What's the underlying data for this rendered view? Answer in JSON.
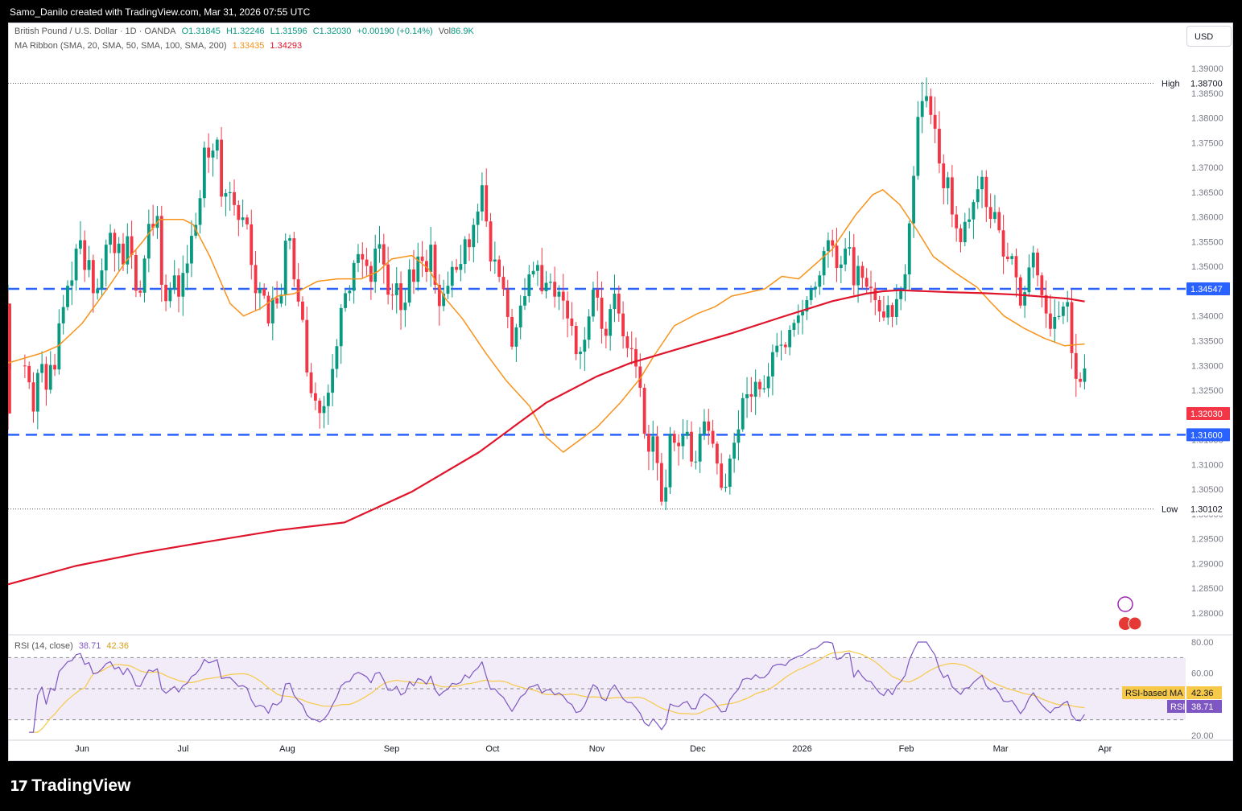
{
  "header": {
    "title": "Samo_Danilo created with TradingView.com, Mar 31, 2026 07:55 UTC"
  },
  "legend": {
    "symbol": "British Pound / U.S. Dollar · 1D · OANDA",
    "open": "O1.31845",
    "high": "H1.32246",
    "low": "L1.31596",
    "close": "C1.32030",
    "change": "+0.00190 (+0.14%)",
    "volume_label": "Vol",
    "volume": "86.9K",
    "ma_label": "MA Ribbon (SMA, 20, SMA, 50, SMA, 100, SMA, 200)",
    "ma1": "1.33435",
    "ma2": "1.34293",
    "rsi_label": "RSI (14, close)",
    "rsi_value": "38.71",
    "rsi_ma_value": "42.36"
  },
  "toolbar": {
    "currency": "USD"
  },
  "footer": {
    "brand": "TradingView"
  },
  "colors": {
    "up": "#089981",
    "down": "#f23645",
    "ma_fast": "#f7931a",
    "ma_slow": "#e0142a",
    "level": "#2962ff",
    "rsi": "#7e57c2",
    "rsi_ma": "#f7c948"
  },
  "chart_data": [
    {
      "type": "candlestick",
      "title": "British Pound / U.S. Dollar · 1D · OANDA",
      "ylim": [
        1.276,
        1.392
      ],
      "y_ticks": [
        "1.39000",
        "1.38500",
        "1.38000",
        "1.37500",
        "1.37000",
        "1.36500",
        "1.36000",
        "1.35500",
        "1.35000",
        "1.34500",
        "1.34000",
        "1.33500",
        "1.33000",
        "1.32500",
        "1.32000",
        "1.31500",
        "1.31000",
        "1.30500",
        "1.30000",
        "1.29500",
        "1.29000",
        "1.28500",
        "1.28000"
      ],
      "y_tick_values": [
        1.39,
        1.385,
        1.38,
        1.375,
        1.37,
        1.365,
        1.36,
        1.355,
        1.35,
        1.345,
        1.34,
        1.335,
        1.33,
        1.325,
        1.32,
        1.315,
        1.31,
        1.305,
        1.3,
        1.295,
        1.29,
        1.285,
        1.28
      ],
      "x_labels": [
        {
          "label": "Jun",
          "day": 22
        },
        {
          "label": "Jul",
          "day": 52
        },
        {
          "label": "Aug",
          "day": 83
        },
        {
          "label": "Sep",
          "day": 114
        },
        {
          "label": "Oct",
          "day": 144
        },
        {
          "label": "Nov",
          "day": 175
        },
        {
          "label": "Dec",
          "day": 205
        },
        {
          "label": "2026",
          "day": 236
        },
        {
          "label": "Feb",
          "day": 267
        },
        {
          "label": "Mar",
          "day": 295
        },
        {
          "label": "Apr",
          "day": 326
        }
      ],
      "day_range": [
        0,
        350
      ],
      "high": {
        "label": "High",
        "value": "1.38700",
        "y": 1.387
      },
      "low": {
        "label": "Low",
        "value": "1.30102",
        "y": 1.30102
      },
      "levels": [
        {
          "value": "1.34547",
          "y": 1.34547
        },
        {
          "value": "1.31600",
          "y": 1.316
        }
      ],
      "last_price": {
        "value": "1.32030",
        "y": 1.3203
      },
      "series": [
        {
          "name": "SMA 20",
          "days": [
            0,
            10,
            15,
            22,
            30,
            35,
            40,
            45,
            52,
            55,
            60,
            66,
            70,
            75,
            80,
            85,
            92,
            98,
            105,
            110,
            114,
            120,
            125,
            130,
            135,
            142,
            148,
            150,
            155,
            160,
            165,
            170,
            175,
            182,
            188,
            192,
            198,
            205,
            210,
            215,
            225,
            230,
            235,
            245,
            252,
            257,
            260,
            265,
            270,
            275,
            282,
            288,
            292,
            296,
            302,
            308,
            314,
            320
          ],
          "values": [
            1.3305,
            1.3325,
            1.334,
            1.3385,
            1.346,
            1.351,
            1.355,
            1.3595,
            1.3595,
            1.3585,
            1.352,
            1.3425,
            1.34,
            1.3415,
            1.344,
            1.3445,
            1.347,
            1.3475,
            1.3475,
            1.349,
            1.3515,
            1.3522,
            1.3495,
            1.3435,
            1.3395,
            1.3325,
            1.327,
            1.3255,
            1.3218,
            1.3155,
            1.3125,
            1.315,
            1.3175,
            1.3225,
            1.3275,
            1.332,
            1.338,
            1.3405,
            1.3418,
            1.344,
            1.3455,
            1.348,
            1.3475,
            1.3535,
            1.3605,
            1.3645,
            1.3655,
            1.3625,
            1.3575,
            1.352,
            1.3485,
            1.3458,
            1.3428,
            1.34,
            1.3375,
            1.3355,
            1.334,
            1.33435
          ]
        },
        {
          "name": "SMA 200",
          "days": [
            0,
            20,
            40,
            60,
            80,
            100,
            120,
            140,
            160,
            175,
            185,
            200,
            215,
            230,
            245,
            255,
            260,
            265,
            280,
            290,
            300,
            315,
            320
          ],
          "values": [
            1.2858,
            1.2895,
            1.2922,
            1.2945,
            1.2967,
            1.2983,
            1.3045,
            1.3125,
            1.3225,
            1.3278,
            1.3305,
            1.3335,
            1.3365,
            1.3398,
            1.343,
            1.3445,
            1.345,
            1.3452,
            1.3448,
            1.3446,
            1.3443,
            1.3435,
            1.34293
          ]
        }
      ],
      "candles": {
        "description": "Approximately 250 daily OHLC candles estimated from the chart shape; first day ~May 8 2025, last day Mar 31 2026.",
        "first_day": 5,
        "step_days": 1.27,
        "days": [
          5,
          6.27,
          7.54,
          8.81,
          10.08,
          11.35,
          12.62,
          13.89,
          15.16,
          16.43,
          17.7,
          18.97,
          20.24,
          21.51,
          22.78,
          24.05,
          25.32,
          26.59,
          27.86,
          29.13,
          30.4,
          31.67,
          32.94,
          34.21,
          35.48,
          36.75,
          38.02,
          39.29,
          40.56,
          41.83,
          43.1,
          44.37,
          45.64,
          46.91,
          48.18,
          49.45,
          50.72,
          51.99,
          53.26,
          54.53,
          55.8,
          57.07,
          58.34,
          59.61,
          60.88,
          62.15,
          63.42,
          64.69,
          65.96,
          67.23,
          68.5,
          69.77,
          71.04,
          72.31,
          73.58,
          74.85,
          76.12,
          77.39,
          78.66,
          79.93,
          81.2,
          82.47,
          83.74,
          85.01,
          86.28,
          87.55,
          88.82,
          90.09,
          91.36,
          92.63,
          93.9,
          95.17,
          96.44,
          97.71,
          98.98,
          100.25,
          101.52,
          102.79,
          104.06,
          105.33,
          106.6,
          107.87,
          109.14,
          110.41,
          111.68,
          112.95,
          114.22,
          115.49,
          116.76,
          118.03,
          119.3,
          120.57,
          121.84,
          123.11,
          124.38,
          125.65,
          126.92,
          128.19,
          129.46,
          130.73,
          132,
          133.27,
          134.54,
          135.81,
          137.08,
          138.35,
          139.62,
          140.89,
          142.16,
          143.43,
          144.7,
          145.97,
          147.24,
          148.51,
          149.78,
          151.05,
          152.32,
          153.59,
          154.86,
          156.13,
          157.4,
          158.67,
          159.94,
          161.21,
          162.48,
          163.75,
          165.02,
          166.29,
          167.56,
          168.83,
          170.1,
          171.37,
          172.64,
          173.91,
          175.18,
          176.45,
          177.72,
          178.99,
          180.26,
          181.53,
          182.8,
          184.07,
          185.34,
          186.61,
          187.88,
          189.15,
          190.42,
          191.69,
          192.96,
          194.23,
          195.5,
          196.77,
          198.04,
          199.31,
          200.58,
          201.85,
          203.12,
          204.39,
          205.66,
          206.93,
          208.2,
          209.47,
          210.74,
          212.01,
          213.28,
          214.55,
          215.82,
          217.09,
          218.36,
          219.63,
          220.9,
          222.17,
          223.44,
          224.71,
          225.98,
          227.25,
          228.52,
          229.79,
          231.06,
          232.33,
          233.6,
          234.87,
          236.14,
          237.41,
          238.68,
          239.95,
          241.22,
          242.49,
          243.76,
          245.03,
          246.3,
          247.57,
          248.84,
          250.11,
          251.38,
          252.65,
          253.92,
          255.19,
          256.46,
          257.73,
          259,
          260.27,
          261.54,
          262.81,
          264.08,
          265.35,
          266.62,
          267.89,
          269.16,
          270.43,
          271.7,
          272.97,
          274.24,
          275.51,
          276.78,
          278.05,
          279.32,
          280.59,
          281.86,
          283.13,
          284.4,
          285.67,
          286.94,
          288.21,
          289.48,
          290.75,
          292.02,
          293.29,
          294.56,
          295.83,
          297.1,
          298.37,
          299.64,
          300.91,
          302.18,
          303.45,
          304.72,
          305.99,
          307.26,
          308.53,
          309.8,
          311.07,
          312.34,
          313.61,
          314.88,
          316.15,
          317.42,
          318.69,
          319.96
        ],
        "closes": [
          1.3299,
          1.3266,
          1.3207,
          1.3285,
          1.3303,
          1.3251,
          1.3301,
          1.3292,
          1.3385,
          1.3418,
          1.3461,
          1.3472,
          1.3536,
          1.3553,
          1.3493,
          1.3513,
          1.3446,
          1.3455,
          1.3492,
          1.3544,
          1.3568,
          1.3527,
          1.3546,
          1.3504,
          1.3561,
          1.3523,
          1.3451,
          1.3447,
          1.3516,
          1.3586,
          1.3578,
          1.3602,
          1.3463,
          1.343,
          1.3454,
          1.3482,
          1.3439,
          1.3487,
          1.3506,
          1.3562,
          1.3584,
          1.3638,
          1.374,
          1.372,
          1.3734,
          1.3756,
          1.3641,
          1.3648,
          1.365,
          1.3624,
          1.3594,
          1.3599,
          1.3585,
          1.3503,
          1.3446,
          1.3455,
          1.3441,
          1.3385,
          1.3436,
          1.3425,
          1.3443,
          1.3552,
          1.3557,
          1.3474,
          1.3429,
          1.3392,
          1.3286,
          1.3244,
          1.3229,
          1.3204,
          1.3218,
          1.3245,
          1.3293,
          1.3339,
          1.3416,
          1.3446,
          1.3451,
          1.3507,
          1.3525,
          1.3514,
          1.3501,
          1.3469,
          1.3536,
          1.3545,
          1.3504,
          1.3443,
          1.3442,
          1.3466,
          1.3412,
          1.3427,
          1.3494,
          1.3469,
          1.352,
          1.3511,
          1.3489,
          1.3544,
          1.3463,
          1.342,
          1.3445,
          1.3461,
          1.3499,
          1.3493,
          1.3505,
          1.3555,
          1.3539,
          1.3584,
          1.3611,
          1.3664,
          1.3591,
          1.351,
          1.3514,
          1.3479,
          1.3454,
          1.3398,
          1.3338,
          1.3377,
          1.3421,
          1.344,
          1.3484,
          1.3491,
          1.3503,
          1.345,
          1.3467,
          1.3469,
          1.3439,
          1.3449,
          1.3431,
          1.3395,
          1.338,
          1.3323,
          1.3328,
          1.3352,
          1.3399,
          1.3453,
          1.3437,
          1.3374,
          1.336,
          1.3414,
          1.3445,
          1.3405,
          1.3359,
          1.3335,
          1.3333,
          1.3298,
          1.3255,
          1.3162,
          1.3126,
          1.3157,
          1.3103,
          1.3025,
          1.3054,
          1.3162,
          1.3144,
          1.3137,
          1.3158,
          1.3166,
          1.3106,
          1.3106,
          1.3162,
          1.3187,
          1.3168,
          1.3142,
          1.3102,
          1.3053,
          1.3055,
          1.3112,
          1.3144,
          1.3171,
          1.3234,
          1.3242,
          1.3237,
          1.3267,
          1.3252,
          1.3254,
          1.3278,
          1.3327,
          1.334,
          1.3342,
          1.3337,
          1.3372,
          1.3386,
          1.3401,
          1.3409,
          1.3432,
          1.3454,
          1.3459,
          1.3482,
          1.3531,
          1.3553,
          1.3542,
          1.3497,
          1.3504,
          1.3536,
          1.3539,
          1.3462,
          1.3501,
          1.3477,
          1.3459,
          1.3456,
          1.3432,
          1.3409,
          1.3397,
          1.3422,
          1.3398,
          1.3434,
          1.3454,
          1.3484,
          1.3587,
          1.3683,
          1.3802,
          1.3834,
          1.3844,
          1.3806,
          1.3778,
          1.3708,
          1.3658,
          1.368,
          1.3605,
          1.3577,
          1.3549,
          1.359,
          1.3595,
          1.363,
          1.3656,
          1.3681,
          1.362,
          1.3596,
          1.361,
          1.3573,
          1.352,
          1.3515,
          1.3521,
          1.3478,
          1.3421,
          1.3448,
          1.3498,
          1.3528,
          1.3482,
          1.3442,
          1.3405,
          1.3374,
          1.3398,
          1.34,
          1.3419,
          1.3428,
          1.3325,
          1.3273,
          1.3267,
          1.3294,
          1.3326,
          1.3366,
          1.3408,
          1.3425,
          1.3333,
          1.3292,
          1.3301,
          1.3319,
          1.3356,
          1.3417,
          1.341,
          1.3381,
          1.3356,
          1.3203
        ]
      }
    },
    {
      "type": "line",
      "title": "RSI (14, close)",
      "ylim": [
        15,
        82
      ],
      "y_ticks": [
        "80.00",
        "60.00",
        "20.00"
      ],
      "y_tick_values": [
        80,
        60,
        20
      ],
      "bands": [
        70,
        50,
        30
      ],
      "series": [
        {
          "name": "RSI",
          "value": "38.71"
        },
        {
          "name": "RSI-based MA",
          "value": "42.36"
        }
      ],
      "tags": [
        {
          "label": "RSI-based MA",
          "value": "42.36"
        },
        {
          "label": "RSI",
          "value": "38.71"
        }
      ]
    }
  ]
}
